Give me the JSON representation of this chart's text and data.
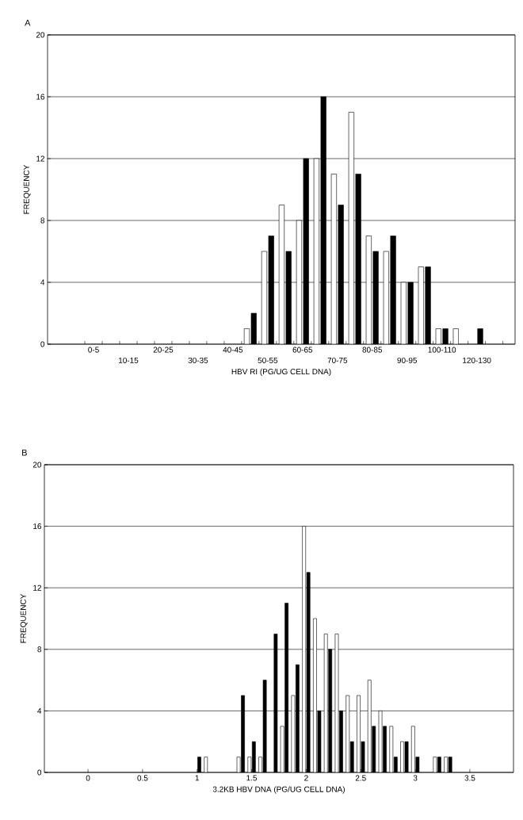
{
  "chart_data": [
    {
      "type": "bar",
      "title": "A",
      "xlabel": "HBV RI (PG/UG CELL DNA)",
      "ylabel": "FREQUENCY",
      "categories": [
        "0-5",
        null,
        "10-15",
        null,
        "20-25",
        null,
        "30-35",
        null,
        "40-45",
        null,
        "50-55",
        null,
        "60-65",
        null,
        "70-75",
        null,
        "80-85",
        null,
        "90-95",
        null,
        "100-110",
        null,
        "120-130"
      ],
      "series": [
        {
          "color": "#ffffff",
          "values": [
            0,
            0,
            0,
            0,
            0,
            0,
            0,
            0,
            0,
            1,
            6,
            9,
            8,
            12,
            11,
            15,
            7,
            6,
            4,
            5,
            1,
            1,
            0
          ]
        },
        {
          "color": "#000000",
          "values": [
            0,
            0,
            0,
            0,
            0,
            0,
            0,
            0,
            0,
            2,
            7,
            6,
            12,
            16,
            9,
            11,
            6,
            7,
            4,
            5,
            1,
            0,
            1
          ]
        }
      ],
      "ylim": [
        0,
        20
      ],
      "yticks": [
        0,
        4,
        8,
        12,
        16,
        20
      ],
      "grid": "y"
    },
    {
      "type": "bar",
      "title": "B",
      "xlabel": "3.2KB HBV DNA (PG/UG CELL DNA)",
      "ylabel": "FREQUENCY",
      "x": [
        1.0,
        1.1,
        1.2,
        1.3,
        1.4,
        1.5,
        1.6,
        1.7,
        1.8,
        1.9,
        2.0,
        2.1,
        2.2,
        2.3,
        2.4,
        2.5,
        2.6,
        2.7,
        2.8,
        2.9,
        3.0,
        3.1,
        3.2,
        3.3
      ],
      "series": [
        {
          "color": "#ffffff",
          "values": [
            0,
            1,
            0,
            0,
            1,
            1,
            1,
            0,
            3,
            5,
            16,
            10,
            9,
            9,
            5,
            5,
            6,
            4,
            3,
            2,
            3,
            0,
            1,
            1
          ]
        },
        {
          "color": "#000000",
          "values": [
            1,
            0,
            0,
            0,
            5,
            2,
            6,
            9,
            11,
            7,
            13,
            4,
            8,
            4,
            2,
            2,
            3,
            3,
            1,
            2,
            1,
            0,
            1,
            1
          ]
        }
      ],
      "xlim": [
        -0.4,
        3.9
      ],
      "xticks": [
        0,
        0.5,
        1,
        1.5,
        2,
        2.5,
        3,
        3.5
      ],
      "ylim": [
        0,
        20
      ],
      "yticks": [
        0,
        4,
        8,
        12,
        16,
        20
      ],
      "grid": "y"
    }
  ]
}
